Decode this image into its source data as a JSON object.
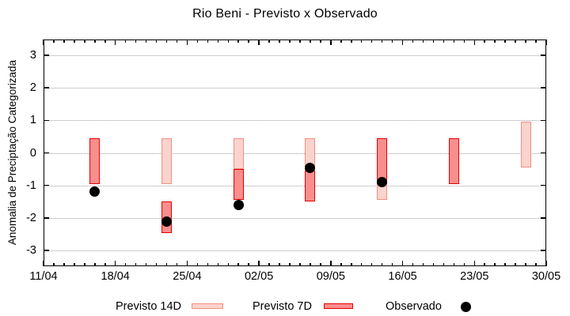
{
  "title": "Rio Beni - Previsto x Observado",
  "chart_data": {
    "type": "bar",
    "subtype": "forecast-range-bars-with-observed-points",
    "title": "Rio Beni - Previsto x Observado",
    "xlabel": "",
    "ylabel": "Anomalia de Preciptação Categorizada",
    "ylim": [
      -3.48,
      3.48
    ],
    "y_ticks": [
      3,
      2,
      1,
      0,
      -1,
      -2,
      -3
    ],
    "x_axis_days": 49,
    "x_tick_interval_days": 7,
    "x_ticks": [
      "11/04",
      "18/04",
      "25/04",
      "02/05",
      "09/05",
      "16/05",
      "23/05",
      "30/05"
    ],
    "grid": "horizontal-dotted",
    "legend_position": "bottom-outside",
    "series": [
      {
        "name": "Previsto 14D",
        "type": "range-bar",
        "fill": "#fbd3cd",
        "border": "#f19082",
        "bars": [
          {
            "date": "23/04",
            "day": 12,
            "from": 0.45,
            "to": -0.95
          },
          {
            "date": "30/04",
            "day": 19,
            "from": 0.45,
            "to": -0.5
          },
          {
            "date": "07/05",
            "day": 26,
            "from": 0.45,
            "to": -0.55
          },
          {
            "date": "14/05",
            "day": 33,
            "from": -0.95,
            "to": -1.45
          },
          {
            "date": "28/05",
            "day": 47,
            "from": 0.95,
            "to": -0.45
          }
        ]
      },
      {
        "name": "Previsto 7D",
        "type": "range-bar",
        "fill": "#fa8e8e",
        "border": "#e60000",
        "bars": [
          {
            "date": "16/04",
            "day": 5,
            "from": 0.45,
            "to": -0.95
          },
          {
            "date": "23/04",
            "day": 12,
            "from": -1.5,
            "to": -2.45
          },
          {
            "date": "30/04",
            "day": 19,
            "from": -0.5,
            "to": -1.45
          },
          {
            "date": "07/05",
            "day": 26,
            "from": -0.55,
            "to": -1.5
          },
          {
            "date": "14/05",
            "day": 33,
            "from": 0.45,
            "to": -0.95
          },
          {
            "date": "21/05",
            "day": 40,
            "from": 0.45,
            "to": -0.95
          }
        ]
      },
      {
        "name": "Observado",
        "type": "scatter",
        "color": "#000000",
        "points": [
          {
            "date": "16/04",
            "day": 5,
            "value": -1.2
          },
          {
            "date": "23/04",
            "day": 12,
            "value": -2.1
          },
          {
            "date": "30/04",
            "day": 19,
            "value": -1.6
          },
          {
            "date": "07/05",
            "day": 26,
            "value": -0.45
          },
          {
            "date": "14/05",
            "day": 33,
            "value": -0.9
          }
        ]
      }
    ]
  }
}
